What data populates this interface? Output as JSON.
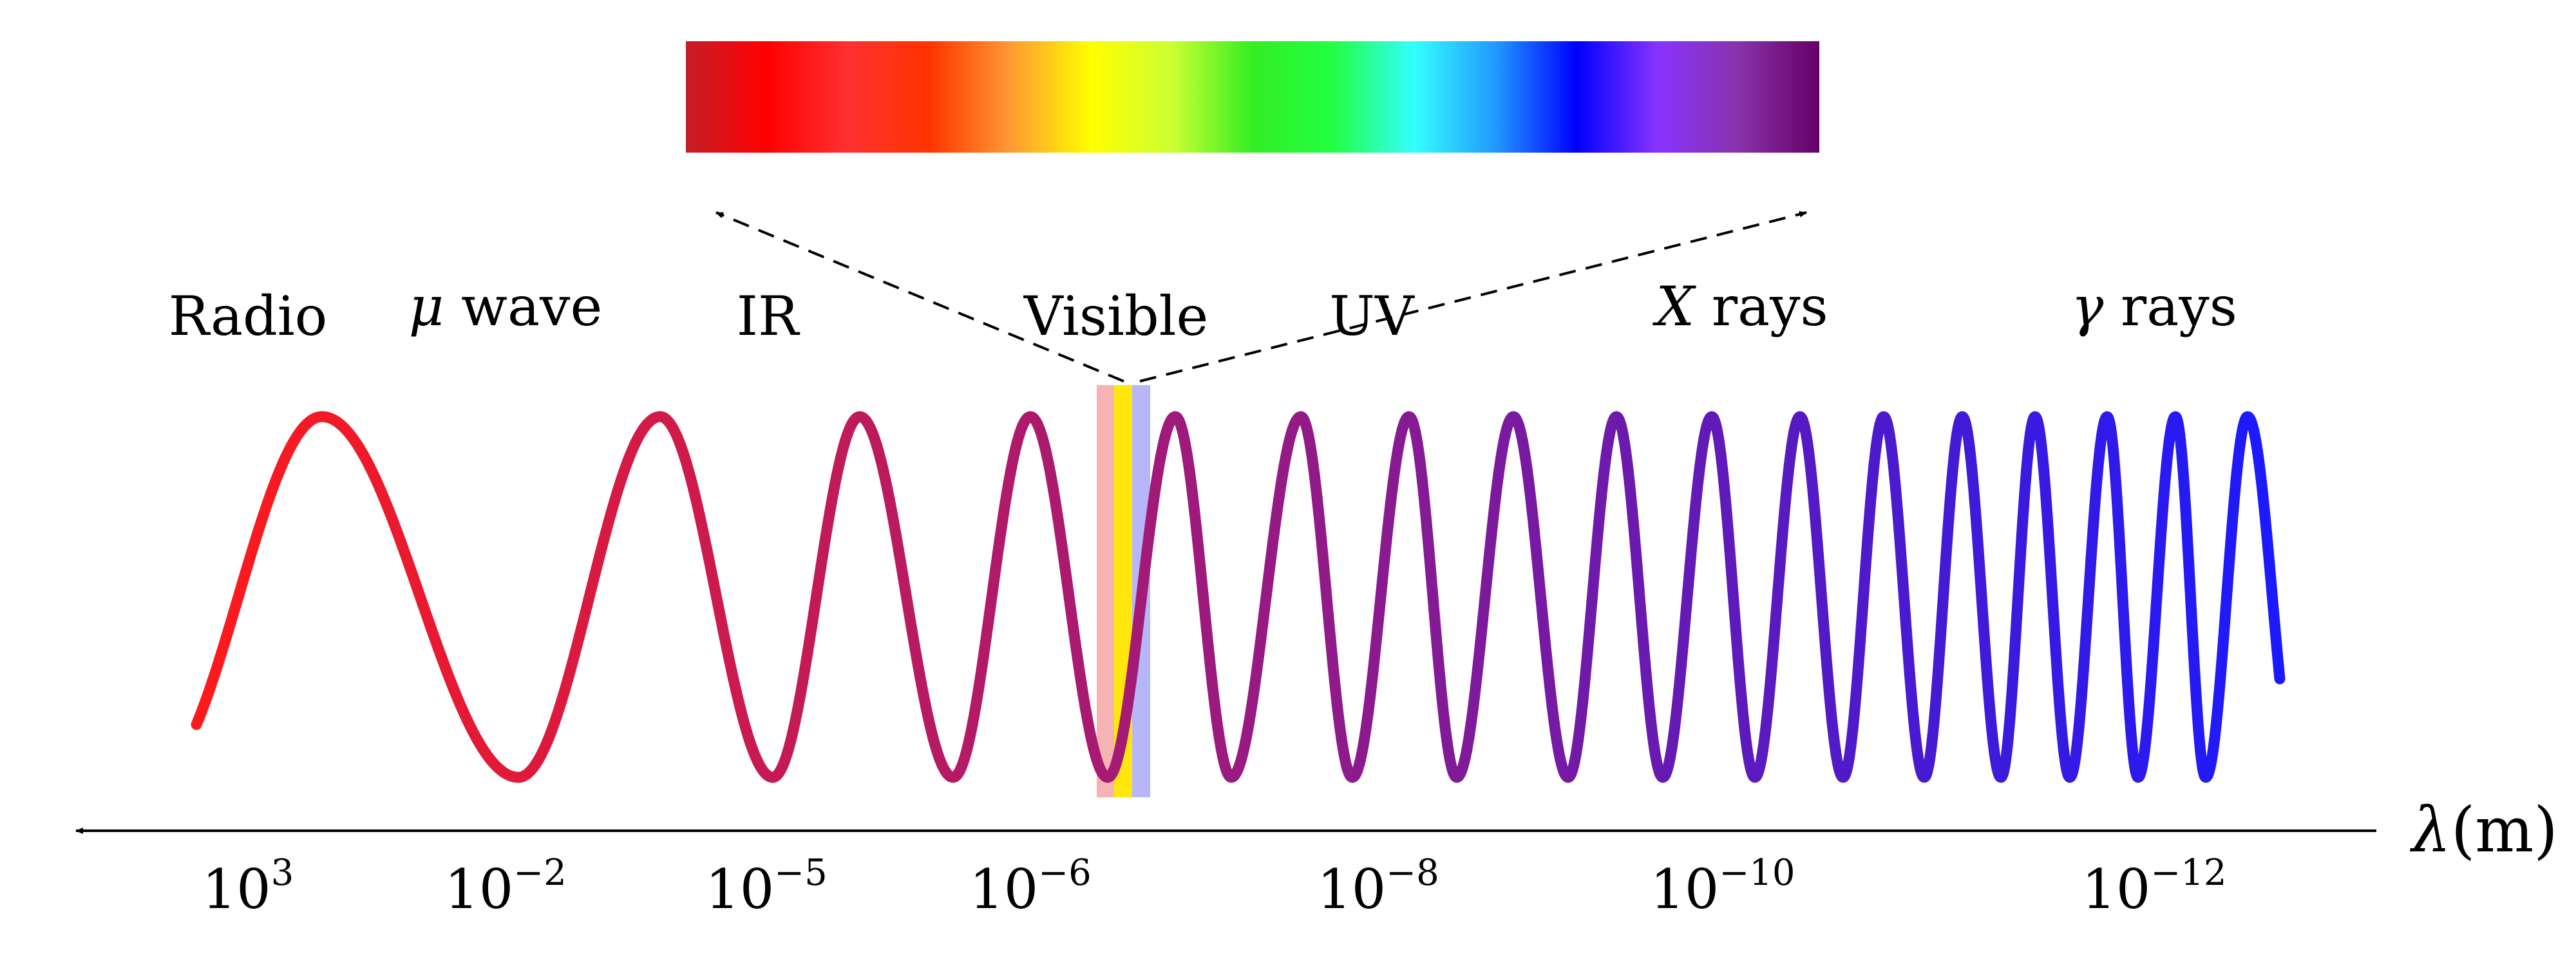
{
  "diagram": {
    "axis": {
      "title_symbol": "λ",
      "title_unit": "(m)",
      "direction": "decreasing wavelength to the right"
    },
    "bands": [
      {
        "id": "radio",
        "label": "Radio"
      },
      {
        "id": "microwave",
        "label_symbol": "μ",
        "label_text": " wave"
      },
      {
        "id": "ir",
        "label": "IR"
      },
      {
        "id": "visible",
        "label": "Visible"
      },
      {
        "id": "uv",
        "label": "UV"
      },
      {
        "id": "xray",
        "label_symbol": "X",
        "label_text": " rays"
      },
      {
        "id": "gamma",
        "label_symbol": "γ",
        "label_text": " rays"
      }
    ],
    "ticks": [
      {
        "base": "10",
        "exp": "3"
      },
      {
        "base": "10",
        "exp": "−2"
      },
      {
        "base": "10",
        "exp": "−5"
      },
      {
        "base": "10",
        "exp": "−6"
      },
      {
        "base": "10",
        "exp": "−8"
      },
      {
        "base": "10",
        "exp": "−10"
      },
      {
        "base": "10",
        "exp": "−12"
      }
    ],
    "wave": {
      "color_start": "#ff1a1a",
      "color_end": "#1a1aff",
      "cycles_shown": 19
    },
    "visible_strip_colors": [
      "#f4a6a6",
      "#ffe600",
      "#a9a9f7"
    ],
    "spectrum_colors": [
      "#c41e28",
      "#ff0000",
      "#ff3030",
      "#ff3300",
      "#ff9933",
      "#ffff00",
      "#ccff33",
      "#33ee22",
      "#22ff44",
      "#33ffff",
      "#2299ff",
      "#0000ff",
      "#8833ff",
      "#8833aa",
      "#660066"
    ]
  }
}
